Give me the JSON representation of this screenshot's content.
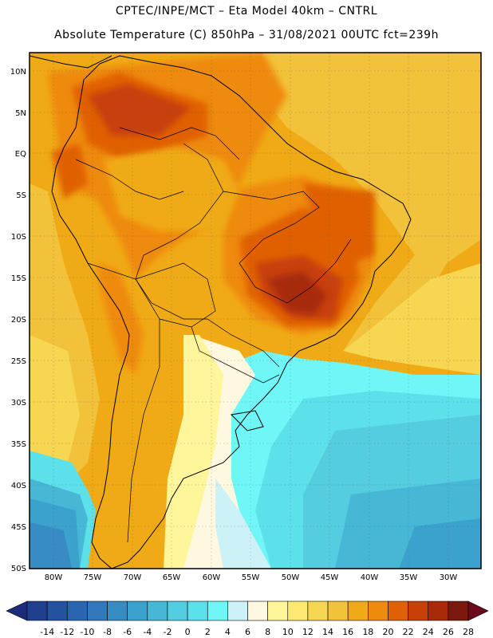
{
  "header": {
    "title_line1": "CPTEC/INPE/MCT –  Eta Model 40km – CNTRL",
    "title_line2": "Absolute Temperature (C) 850hPa – 31/08/2021 00UTC fct=239h"
  },
  "map": {
    "lat_ticks": [
      "10N",
      "5N",
      "EQ",
      "5S",
      "10S",
      "15S",
      "20S",
      "25S",
      "30S",
      "35S",
      "40S",
      "45S",
      "50S"
    ],
    "lon_ticks": [
      "80W",
      "75W",
      "70W",
      "65W",
      "60W",
      "55W",
      "50W",
      "45W",
      "40W",
      "35W",
      "30W"
    ]
  },
  "colorbar": {
    "labels": [
      "-14",
      "-12",
      "-10",
      "-8",
      "-6",
      "-4",
      "-2",
      "0",
      "2",
      "4",
      "6",
      "8",
      "10",
      "12",
      "14",
      "16",
      "18",
      "20",
      "22",
      "24",
      "26",
      "28"
    ],
    "colors": [
      "#1f3f8f",
      "#2452a0",
      "#2a66b0",
      "#3179bc",
      "#378cc4",
      "#3aa2cc",
      "#46b8d6",
      "#55cde0",
      "#5ce1ea",
      "#6ff7f7",
      "#ccf2f8",
      "#fff8e0",
      "#fff59a",
      "#fde872",
      "#f7d652",
      "#f2c23a",
      "#f0aa16",
      "#ee8a0c",
      "#e06006",
      "#c84008",
      "#a82a08",
      "#7a1a0c"
    ],
    "arrow_left_color": "#1b2d7a",
    "arrow_right_color": "#6a0a1a"
  }
}
